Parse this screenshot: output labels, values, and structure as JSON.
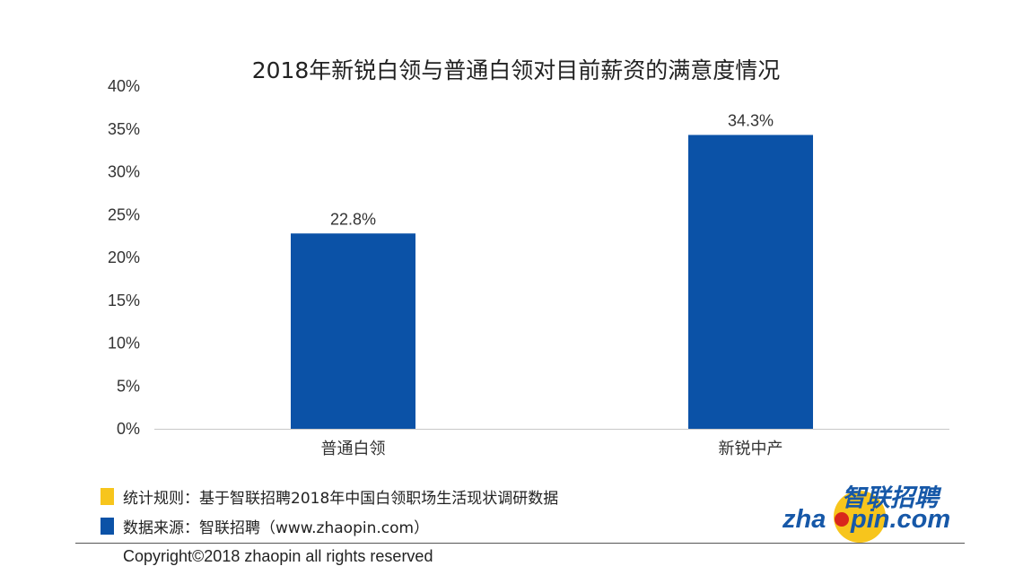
{
  "chart_data": {
    "type": "bar",
    "title": "2018年新锐白领与普通白领对目前薪资的满意度情况",
    "categories": [
      "普通白领",
      "新锐中产"
    ],
    "values": [
      22.8,
      34.3
    ],
    "data_labels": [
      "22.8%",
      "34.3%"
    ],
    "yticks": [
      "0%",
      "5%",
      "10%",
      "15%",
      "20%",
      "25%",
      "30%",
      "35%",
      "40%"
    ],
    "ylim": [
      0,
      40
    ],
    "xlabel": "",
    "ylabel": "",
    "grid": false,
    "bar_color": "#0b52a7"
  },
  "footer": {
    "note_swatch_color": "#f7c51c",
    "note_text": "统计规则：基于智联招聘2018年中国白领职场生活现状调研数据",
    "source_swatch_color": "#0b52a7",
    "source_text": "数据来源：智联招聘（www.zhaopin.com）",
    "copyright": "Copyright©2018 zhaopin all rights reserved"
  },
  "logo": {
    "cn": "智联招聘",
    "en_left": "zha",
    "en_right": "pin.com",
    "primary_color": "#1658a8",
    "accent_color": "#f7c51c",
    "dot_color": "#d9261c"
  }
}
